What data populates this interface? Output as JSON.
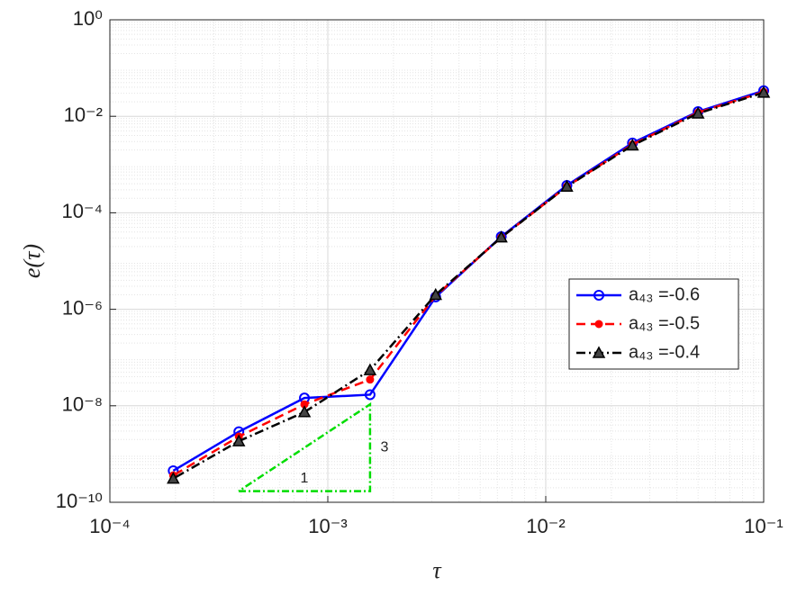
{
  "chart_data": {
    "type": "line",
    "xlabel": "τ",
    "ylabel": "e(τ)",
    "x": [
      0.1,
      0.05,
      0.025,
      0.0125,
      0.00625,
      0.003125,
      0.0015625,
      0.00078125,
      0.000390625,
      0.0001953125
    ],
    "series": [
      {
        "name": "a₄₃ =-0.6",
        "color": "#0000ff",
        "dash": "solid",
        "marker": "circle",
        "values": [
          0.034,
          0.0125,
          0.0028,
          0.00037,
          3.2e-05,
          1.8e-06,
          1.7e-08,
          1.45e-08,
          2.9e-09,
          4.5e-10
        ]
      },
      {
        "name": "a₄₃ =-0.5",
        "color": "#ff0000",
        "dash": "dashed",
        "marker": "dot",
        "values": [
          0.032,
          0.012,
          0.0026,
          0.00035,
          3.1e-05,
          1.9e-06,
          3.5e-08,
          1.07e-08,
          2.3e-09,
          3.6e-10
        ]
      },
      {
        "name": "a₄₃ =-0.4",
        "color": "#000000",
        "dash": "dashdot",
        "marker": "triangle",
        "values": [
          0.031,
          0.0115,
          0.0025,
          0.00035,
          3.1e-05,
          2e-06,
          5.5e-08,
          7.4e-09,
          1.85e-09,
          3.1e-10
        ]
      }
    ],
    "slope_triangle": {
      "color": "#00dd00",
      "x": [
        0.00039,
        0.0015625,
        0.0015625,
        0.00039
      ],
      "y": [
        1.7e-10,
        1.7e-10,
        1.07e-08,
        1.7e-10
      ],
      "labels": [
        "1",
        "3"
      ]
    },
    "xscale": "log",
    "yscale": "log",
    "xlim": [
      0.0001,
      0.1
    ],
    "ylim": [
      1e-10,
      1
    ],
    "xticks": [
      {
        "value": 0.0001,
        "label": "10⁻⁴"
      },
      {
        "value": 0.001,
        "label": "10⁻³"
      },
      {
        "value": 0.01,
        "label": "10⁻²"
      },
      {
        "value": 0.1,
        "label": "10⁻¹"
      }
    ],
    "yticks": [
      {
        "value": 1e-10,
        "label": "10⁻¹⁰"
      },
      {
        "value": 1e-08,
        "label": "10⁻⁸"
      },
      {
        "value": 1e-06,
        "label": "10⁻⁶"
      },
      {
        "value": 0.0001,
        "label": "10⁻⁴"
      },
      {
        "value": 0.01,
        "label": "10⁻²"
      },
      {
        "value": 1,
        "label": "10⁰"
      }
    ],
    "grid": true,
    "minor_grid": true,
    "legend": "right"
  }
}
